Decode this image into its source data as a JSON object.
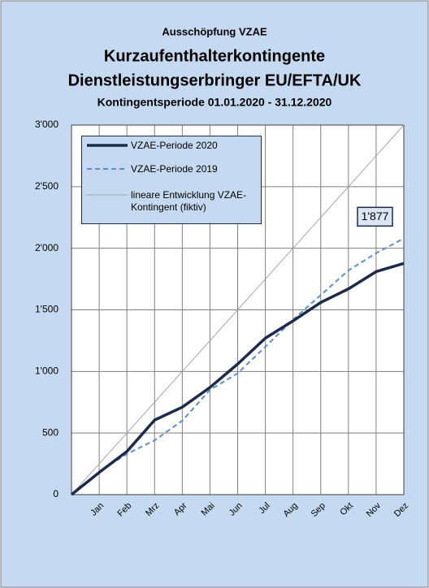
{
  "chart_data": {
    "type": "line",
    "titles": [
      "Ausschöpfung VZAE",
      "Kurzaufenthalterkontingente",
      "Dienstleistungserbringer EU/EFTA/UK",
      "Kontingentsperiode 01.01.2020 - 31.12.2020"
    ],
    "categories": [
      null,
      "Jan",
      "Feb",
      "Mrz",
      "Apr",
      "Mai",
      "Jun",
      "Jul",
      "Aug",
      "Sep",
      "Okt",
      "Nov",
      "Dez"
    ],
    "series": [
      {
        "name": "VZAE-Periode 2020",
        "color": "#1c2b4b",
        "width": 3.5,
        "dash": false,
        "values": [
          0,
          180,
          350,
          605,
          710,
          870,
          1060,
          1270,
          1410,
          1560,
          1670,
          1810,
          1877
        ],
        "value_labels": [
          null,
          null,
          null,
          null,
          null,
          null,
          null,
          null,
          null,
          null,
          null,
          null,
          "1'877"
        ]
      },
      {
        "name": "VZAE-Periode 2019",
        "color": "#5b8ed3",
        "width": 2,
        "dash": true,
        "values": [
          0,
          185,
          330,
          440,
          600,
          850,
          985,
          1200,
          1420,
          1620,
          1820,
          1960,
          2080
        ]
      },
      {
        "name": "lineare Entwicklung VZAE-Kontingent (fiktiv)",
        "color": "#a6a6a6",
        "width": 1,
        "dash": false,
        "values": [
          0,
          250,
          500,
          750,
          1000,
          1250,
          1500,
          1750,
          2000,
          2250,
          2500,
          2750,
          3000
        ]
      }
    ],
    "ylim": [
      0,
      3000
    ],
    "yticks": [
      0,
      500,
      {
        "value": 1000,
        "label": "1'000"
      },
      {
        "value": 1500,
        "label": "1'500"
      },
      {
        "value": 2000,
        "label": "2'000"
      },
      {
        "value": 2500,
        "label": "2'500"
      },
      {
        "value": 3000,
        "label": "3'000"
      }
    ],
    "grid": true,
    "legend": "upper left"
  }
}
